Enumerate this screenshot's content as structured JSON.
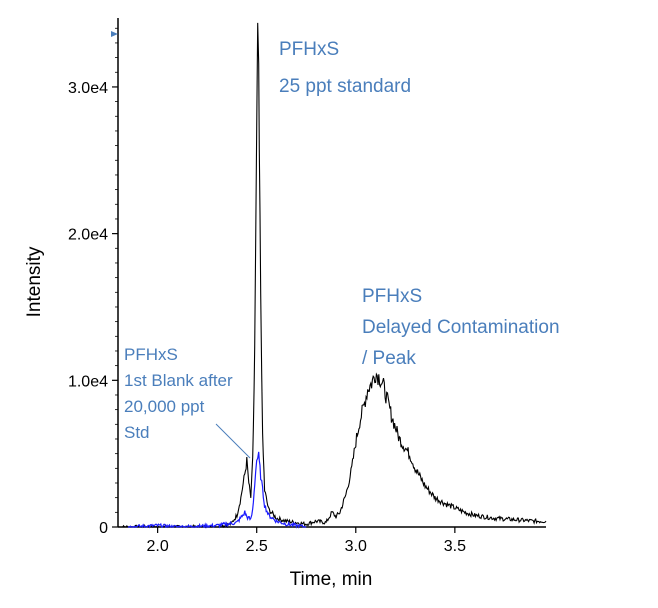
{
  "chart_data": {
    "type": "line",
    "xlabel": "Time, min",
    "ylabel": "Intensity",
    "xlim": [
      1.8,
      3.96
    ],
    "ylim": [
      0,
      34700
    ],
    "x_ticks": [
      2.0,
      2.5,
      3.0,
      3.5
    ],
    "x_tick_labels": [
      "2.0",
      "2.5",
      "3.0",
      "3.5"
    ],
    "y_ticks": [
      0,
      10000,
      20000,
      30000
    ],
    "y_tick_labels": [
      "0",
      "1.0e4",
      "2.0e4",
      "3.0e4"
    ],
    "colors": {
      "standard": "#000000",
      "blank": "#1a1aff",
      "annotation": "#4a7ebb"
    },
    "series": [
      {
        "name": "PFHxS 25 ppt standard",
        "color": "#000000",
        "points": [
          [
            1.8,
            0
          ],
          [
            2.0,
            0
          ],
          [
            2.2,
            0
          ],
          [
            2.3,
            0
          ],
          [
            2.37,
            200
          ],
          [
            2.4,
            800
          ],
          [
            2.42,
            2000
          ],
          [
            2.44,
            3600
          ],
          [
            2.45,
            4500
          ],
          [
            2.46,
            3000
          ],
          [
            2.47,
            2000
          ],
          [
            2.48,
            4500
          ],
          [
            2.49,
            12000
          ],
          [
            2.5,
            26000
          ],
          [
            2.505,
            34200
          ],
          [
            2.51,
            30000
          ],
          [
            2.52,
            16000
          ],
          [
            2.53,
            6000
          ],
          [
            2.54,
            2500
          ],
          [
            2.56,
            1200
          ],
          [
            2.6,
            600
          ],
          [
            2.65,
            400
          ],
          [
            2.7,
            300
          ],
          [
            2.75,
            200
          ],
          [
            2.8,
            400
          ],
          [
            2.85,
            300
          ],
          [
            2.88,
            1000
          ],
          [
            2.9,
            700
          ],
          [
            2.92,
            1000
          ],
          [
            2.95,
            2200
          ],
          [
            2.98,
            4000
          ],
          [
            3.0,
            5800
          ],
          [
            3.02,
            7200
          ],
          [
            3.04,
            8200
          ],
          [
            3.06,
            9400
          ],
          [
            3.08,
            9800
          ],
          [
            3.1,
            10500
          ],
          [
            3.12,
            10200
          ],
          [
            3.14,
            9600
          ],
          [
            3.16,
            8600
          ],
          [
            3.18,
            7600
          ],
          [
            3.2,
            6800
          ],
          [
            3.22,
            6000
          ],
          [
            3.24,
            5600
          ],
          [
            3.26,
            5200
          ],
          [
            3.28,
            4700
          ],
          [
            3.3,
            4000
          ],
          [
            3.35,
            2800
          ],
          [
            3.4,
            2000
          ],
          [
            3.45,
            1600
          ],
          [
            3.5,
            1300
          ],
          [
            3.55,
            1000
          ],
          [
            3.6,
            800
          ],
          [
            3.7,
            600
          ],
          [
            3.8,
            500
          ],
          [
            3.9,
            400
          ],
          [
            3.96,
            400
          ]
        ]
      },
      {
        "name": "PFHxS 1st Blank after 20,000 ppt Std",
        "color": "#1a1aff",
        "points": [
          [
            1.85,
            0
          ],
          [
            2.0,
            100
          ],
          [
            2.1,
            0
          ],
          [
            2.2,
            50
          ],
          [
            2.3,
            100
          ],
          [
            2.4,
            300
          ],
          [
            2.43,
            800
          ],
          [
            2.44,
            1000
          ],
          [
            2.45,
            700
          ],
          [
            2.47,
            500
          ],
          [
            2.48,
            1200
          ],
          [
            2.49,
            3000
          ],
          [
            2.5,
            4600
          ],
          [
            2.51,
            4800
          ],
          [
            2.52,
            3500
          ],
          [
            2.53,
            2500
          ],
          [
            2.54,
            1500
          ],
          [
            2.56,
            800
          ],
          [
            2.6,
            400
          ],
          [
            2.65,
            200
          ],
          [
            2.7,
            100
          ],
          [
            2.75,
            0
          ]
        ]
      }
    ],
    "annotations": [
      {
        "lines": [
          "PFHxS",
          "25 ppt standard"
        ]
      },
      {
        "lines": [
          "PFHxS",
          "Delayed Contamination",
          "/ Peak"
        ]
      },
      {
        "lines": [
          "PFHxS",
          "1st Blank after",
          "20,000 ppt",
          "Std"
        ]
      }
    ]
  }
}
